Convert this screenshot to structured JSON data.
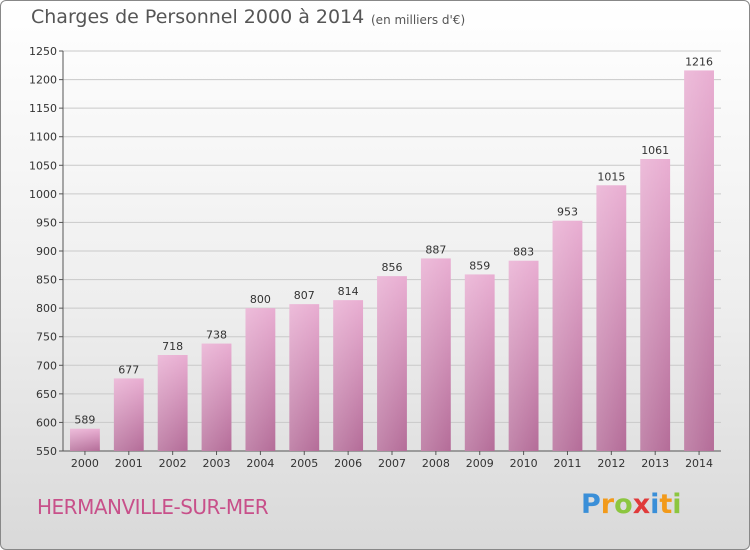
{
  "title": "Charges de Personnel 2000 à 2014",
  "subtitle": "(en milliers d'€)",
  "town": "HERMANVILLE-SUR-MER",
  "logo": {
    "letters": [
      "P",
      "r",
      "o",
      "x",
      "i",
      "t",
      "i"
    ],
    "colors": [
      "#3a8fd8",
      "#f29a1a",
      "#8cc63f",
      "#e03a3a",
      "#3a8fd8",
      "#f29a1a",
      "#8cc63f"
    ]
  },
  "colors": {
    "bar_light": "#e9aed2",
    "bar_dark": "#b46c98",
    "grid": "#c9c9c9",
    "title": "#555555",
    "town": "#c8508a"
  },
  "chart_data": {
    "type": "bar",
    "title": "Charges de Personnel 2000 à 2014",
    "subtitle": "(en milliers d'€)",
    "xlabel": "",
    "ylabel": "",
    "categories": [
      "2000",
      "2001",
      "2002",
      "2003",
      "2004",
      "2005",
      "2006",
      "2007",
      "2008",
      "2009",
      "2010",
      "2011",
      "2012",
      "2013",
      "2014"
    ],
    "values": [
      589,
      677,
      718,
      738,
      800,
      807,
      814,
      856,
      887,
      859,
      883,
      953,
      1015,
      1061,
      1216
    ],
    "ylim": [
      550,
      1250
    ],
    "yticks": [
      550,
      600,
      650,
      700,
      750,
      800,
      850,
      900,
      950,
      1000,
      1050,
      1100,
      1150,
      1200,
      1250
    ],
    "grid": true,
    "legend": "none"
  }
}
